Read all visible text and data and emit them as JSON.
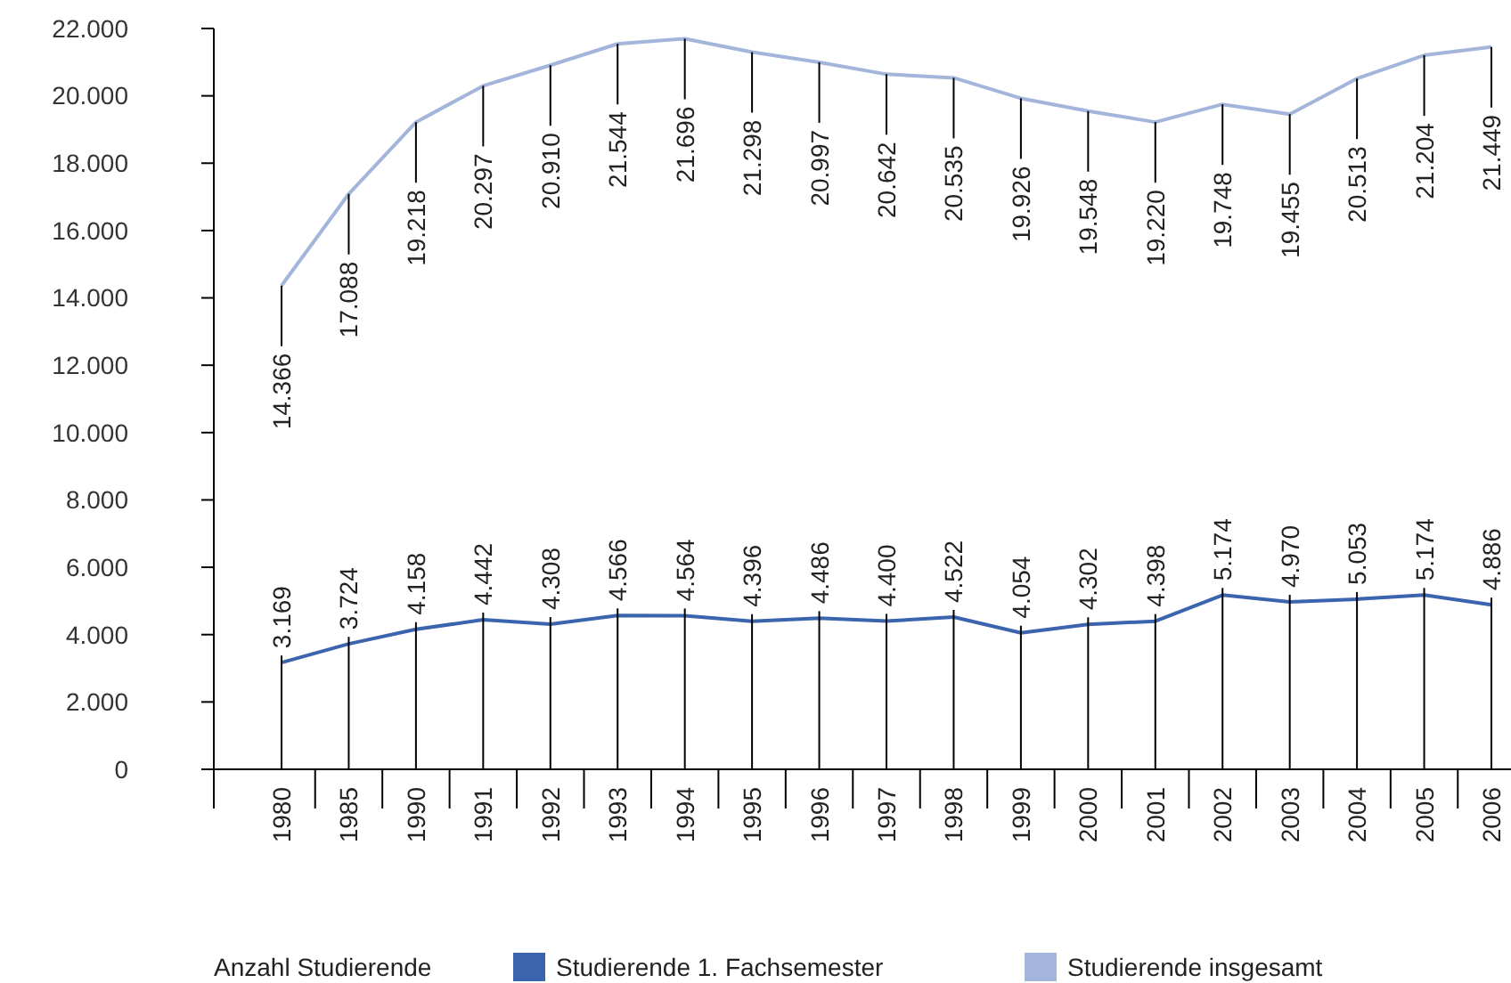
{
  "chart_data": {
    "type": "line",
    "categories": [
      "1980",
      "1985",
      "1990",
      "1991",
      "1992",
      "1993",
      "1994",
      "1995",
      "1996",
      "1997",
      "1998",
      "1999",
      "2000",
      "2001",
      "2002",
      "2003",
      "2004",
      "2005",
      "2006"
    ],
    "series": [
      {
        "name": "Studierende 1. Fachsemester",
        "color": "#3a64ad",
        "values": [
          3169,
          3724,
          4158,
          4442,
          4308,
          4566,
          4564,
          4396,
          4486,
          4400,
          4522,
          4054,
          4302,
          4398,
          5174,
          4970,
          5053,
          5174,
          4886
        ],
        "value_labels": [
          "3.169",
          "3.724",
          "4.158",
          "4.442",
          "4.308",
          "4.566",
          "4.564",
          "4.396",
          "4.486",
          "4.400",
          "4.522",
          "4.054",
          "4.302",
          "4.398",
          "5.174",
          "4.970",
          "5.053",
          "5.174",
          "4.886"
        ]
      },
      {
        "name": "Studierende insgesamt",
        "color": "#a3b5da",
        "values": [
          14366,
          17088,
          19218,
          20297,
          20910,
          21544,
          21696,
          21298,
          20997,
          20642,
          20535,
          19926,
          19548,
          19220,
          19748,
          19455,
          20513,
          21204,
          21449
        ],
        "value_labels": [
          "14.366",
          "17.088",
          "19.218",
          "20.297",
          "20.910",
          "21.544",
          "21.696",
          "21.298",
          "20.997",
          "20.642",
          "20.535",
          "19.926",
          "19.548",
          "19.220",
          "19.748",
          "19.455",
          "20.513",
          "21.204",
          "21.449"
        ]
      }
    ],
    "ylim": [
      0,
      22000
    ],
    "yticks": [
      {
        "value": 0,
        "label": "0"
      },
      {
        "value": 2000,
        "label": "2.000"
      },
      {
        "value": 4000,
        "label": "4.000"
      },
      {
        "value": 6000,
        "label": "6.000"
      },
      {
        "value": 8000,
        "label": "8.000"
      },
      {
        "value": 10000,
        "label": "10.000"
      },
      {
        "value": 12000,
        "label": "12.000"
      },
      {
        "value": 14000,
        "label": "14.000"
      },
      {
        "value": 16000,
        "label": "16.000"
      },
      {
        "value": 18000,
        "label": "18.000"
      },
      {
        "value": 20000,
        "label": "20.000"
      },
      {
        "value": 22000,
        "label": "22.000"
      }
    ],
    "legend": "bottom",
    "legend_title": "Anzahl Studierende",
    "grid": false,
    "marker": "none",
    "line_style": "solid"
  }
}
